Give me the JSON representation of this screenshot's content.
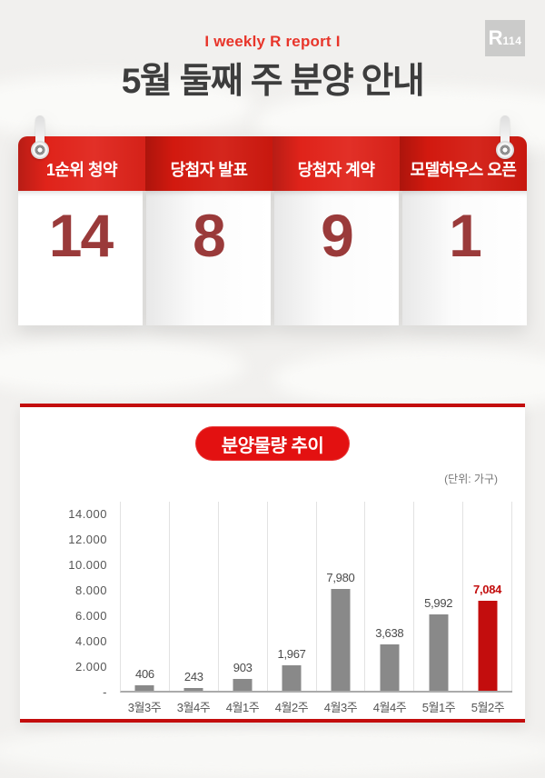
{
  "header": {
    "report_tag": "I weekly R report I",
    "title": "5월 둘째 주 분양 안내",
    "logo_main": "R",
    "logo_sub": "114"
  },
  "calendar": {
    "columns": [
      {
        "label": "1순위 청약",
        "value": "14"
      },
      {
        "label": "당첨자 발표",
        "value": "8"
      },
      {
        "label": "당첨자 계약",
        "value": "9"
      },
      {
        "label": "모델하우스 오픈",
        "value": "1"
      }
    ]
  },
  "chart": {
    "badge_title": "분양물량 추이",
    "unit_label": "(단위: 가구)"
  },
  "chart_data": {
    "type": "bar",
    "title": "분양물량 추이",
    "unit": "가구",
    "categories": [
      "3월3주",
      "3월4주",
      "4월1주",
      "4월2주",
      "4월3주",
      "4월4주",
      "5월1주",
      "5월2주"
    ],
    "values": [
      406,
      243,
      903,
      1967,
      7980,
      3638,
      5992,
      7084
    ],
    "value_labels": [
      "406",
      "243",
      "903",
      "1,967",
      "7,980",
      "3,638",
      "5,992",
      "7,084"
    ],
    "highlight_index": 7,
    "ylim": [
      0,
      14000
    ],
    "y_ticks": [
      {
        "label": "14.000",
        "value": 14000
      },
      {
        "label": "12.000",
        "value": 12000
      },
      {
        "label": "10.000",
        "value": 10000
      },
      {
        "label": "8.000",
        "value": 8000
      },
      {
        "label": "6.000",
        "value": 6000
      },
      {
        "label": "4.000",
        "value": 4000
      },
      {
        "label": "2.000",
        "value": 2000
      },
      {
        "label": "-",
        "value": 0
      }
    ],
    "grid": "vertical",
    "legend": "none",
    "bar_color": "#898989",
    "highlight_color": "#c30d0d"
  }
}
